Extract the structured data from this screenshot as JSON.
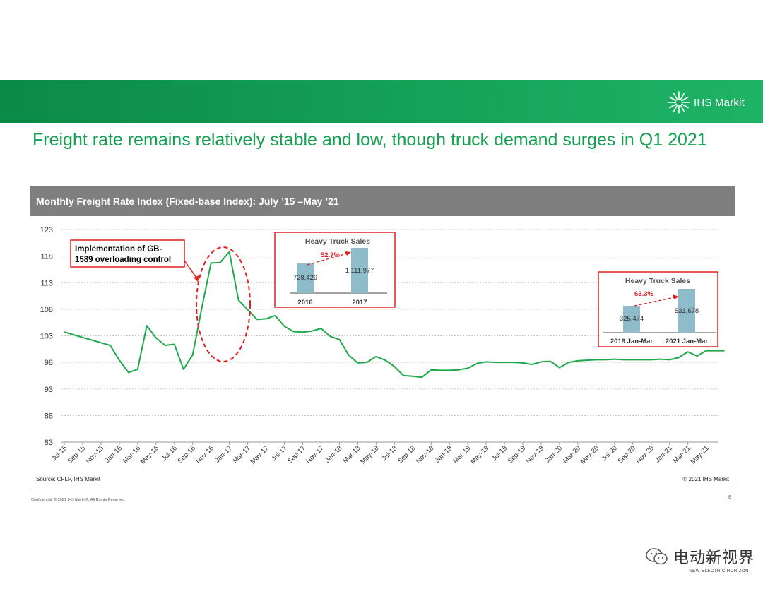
{
  "header": {
    "logo_text": "IHS Markit",
    "logo_mark": "®"
  },
  "slide_title": "Freight rate remains relatively stable and low, though truck demand surges in Q1 2021",
  "chart_header": "Monthly Freight Rate Index (Fixed-base Index): July ’15  –May ’21",
  "source_left": "Source: CFLP, IHS Markit",
  "source_right": "© 2021 IHS Markit",
  "footer_left": "Confidential. © 2021 IHS Markit®. All Rights Reserved.",
  "page_number": "8",
  "watermark": {
    "text": "电动新视界",
    "sub": "NEW ELECTRIC HORIZON"
  },
  "colors": {
    "green_line": "#1fa84a",
    "title_green": "#14a04e",
    "header_gray": "#7f7f7f",
    "annotation_red": "#e02020",
    "bar_blue": "#8fbccb"
  },
  "chart_data": {
    "type": "line",
    "title": "Monthly Freight Rate Index (Fixed-base Index): July ’15  –May ’21",
    "xlabel": "",
    "ylabel": "",
    "ylim": [
      83,
      123
    ],
    "yticks": [
      83,
      88,
      93,
      98,
      103,
      108,
      113,
      118,
      123
    ],
    "grid": "horizontal-dashed",
    "x_tick_labels": [
      "Jul-15",
      "Sep-15",
      "Nov-15",
      "Jan-16",
      "Mar-16",
      "May-16",
      "Jul-16",
      "Sep-16",
      "Nov-16",
      "Jan-17",
      "Mar-17",
      "May-17",
      "Jul-17",
      "Sep-17",
      "Nov-17",
      "Jan-18",
      "Mar-18",
      "May-18",
      "Jul-18",
      "Sep-18",
      "Nov-18",
      "Jan-19",
      "Mar-19",
      "May-19",
      "Jul-19",
      "Sep-19",
      "Nov-19",
      "Jan-20",
      "Mar-20",
      "May-20",
      "Jul-20",
      "Sep-20",
      "Nov-20",
      "Jan-21",
      "Mar-21",
      "May-21"
    ],
    "values": [
      103.7,
      103.2,
      102.7,
      102.2,
      101.7,
      101.2,
      98.4,
      96.1,
      96.7,
      104.9,
      102.6,
      101.2,
      101.4,
      96.7,
      99.4,
      108.3,
      116.7,
      116.8,
      118.8,
      109.7,
      107.9,
      106.1,
      106.2,
      106.8,
      104.8,
      103.8,
      103.7,
      103.9,
      104.4,
      102.9,
      102.3,
      99.4,
      97.9,
      98.0,
      99.1,
      98.4,
      97.2,
      95.5,
      95.4,
      95.2,
      96.6,
      96.5,
      96.5,
      96.6,
      96.9,
      97.8,
      98.1,
      98.0,
      98.0,
      98.0,
      97.9,
      97.6,
      98.1,
      98.2,
      97.0,
      98.0,
      98.3,
      98.4,
      98.5,
      98.5,
      98.6,
      98.5,
      98.5,
      98.5,
      98.5,
      98.6,
      98.5,
      98.9,
      100.0,
      99.2,
      100.2,
      100.2,
      100.2
    ],
    "annotations": {
      "callout_text": "Implementation of GB-1589 overloading control",
      "highlight": "ellipse around Sep-16 to Mar-17"
    },
    "insets": [
      {
        "type": "bar",
        "title": "Heavy Truck Sales",
        "categories": [
          "2016",
          "2017"
        ],
        "values": [
          728429,
          1111977
        ],
        "value_labels": [
          "728,429",
          "1,111,977"
        ],
        "growth_label": "52.7%"
      },
      {
        "type": "bar",
        "title": "Heavy Truck Sales",
        "categories": [
          "2019 Jan-Mar",
          "2021 Jan-Mar"
        ],
        "values": [
          325474,
          531678
        ],
        "value_labels": [
          "325,474",
          "531,678"
        ],
        "growth_label": "63.3%"
      }
    ]
  }
}
